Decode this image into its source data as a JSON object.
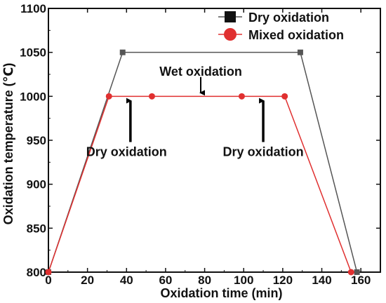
{
  "chart_data": {
    "type": "line",
    "xlabel": "Oxidation time (min)",
    "ylabel": "Oxidation temperature (℃)",
    "xlim": [
      0,
      170
    ],
    "ylim": [
      800,
      1100
    ],
    "xticks": [
      0,
      20,
      40,
      60,
      80,
      100,
      120,
      140,
      160
    ],
    "yticks": [
      800,
      850,
      900,
      950,
      1000,
      1050,
      1100
    ],
    "grid": false,
    "legend_position": "top-right",
    "series": [
      {
        "name": "Dry oxidation",
        "color": "#555555",
        "marker": "square",
        "x": [
          0,
          38,
          129,
          158
        ],
        "y": [
          800,
          1050,
          1050,
          800
        ]
      },
      {
        "name": "Mixed oxidation",
        "color": "#e03030",
        "marker": "circle",
        "x": [
          0,
          31,
          53,
          99,
          121,
          155
        ],
        "y": [
          800,
          1000,
          1000,
          1000,
          1000,
          800
        ]
      }
    ],
    "annotations": [
      {
        "text": "Wet oxidation",
        "x": 78,
        "y": 1028,
        "arrow_to": [
          78,
          1004
        ],
        "arrow_from": [
          78,
          1022
        ]
      },
      {
        "text": "Dry oxidation",
        "x": 40,
        "y": 937,
        "arrow_to": [
          42,
          995
        ],
        "arrow_from": [
          42,
          948
        ]
      },
      {
        "text": "Dry oxidation",
        "x": 110,
        "y": 937,
        "arrow_to": [
          110,
          995
        ],
        "arrow_from": [
          110,
          948
        ]
      }
    ]
  }
}
